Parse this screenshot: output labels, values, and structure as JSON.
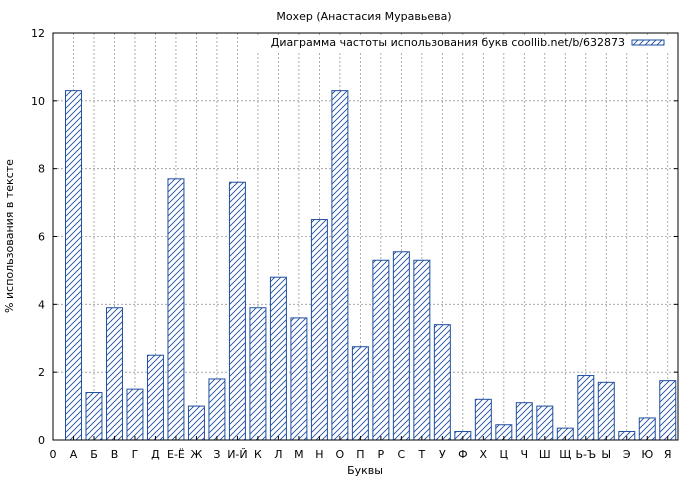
{
  "chart_data": {
    "type": "bar",
    "title": "Мохер (Анастасия Муравьева)",
    "xlabel": "Буквы",
    "ylabel": "% использования в тексте",
    "x_tick_zero": "0",
    "ylim": [
      0,
      12
    ],
    "yticks": [
      0,
      2,
      4,
      6,
      8,
      10,
      12
    ],
    "grid": true,
    "legend_position": "top-right",
    "series": [
      {
        "name": "Диаграмма частоты использования букв coollib.net/b/632873",
        "color": "#1f4fa0",
        "pattern": "diagonal-hatch"
      }
    ],
    "categories": [
      "А",
      "Б",
      "В",
      "Г",
      "Д",
      "Е-Ё",
      "Ж",
      "З",
      "И-Й",
      "К",
      "Л",
      "М",
      "Н",
      "О",
      "П",
      "Р",
      "С",
      "Т",
      "У",
      "Ф",
      "Х",
      "Ц",
      "Ч",
      "Ш",
      "Щ",
      "Ь-Ъ",
      "Ы",
      "Э",
      "Ю",
      "Я"
    ],
    "values": [
      10.3,
      1.4,
      3.9,
      1.5,
      2.5,
      7.7,
      1.0,
      1.8,
      7.6,
      3.9,
      4.8,
      3.6,
      6.5,
      10.3,
      2.75,
      5.3,
      5.55,
      5.3,
      3.4,
      0.25,
      1.2,
      0.45,
      1.1,
      1.0,
      0.35,
      1.9,
      1.7,
      0.25,
      0.65,
      1.75
    ]
  }
}
